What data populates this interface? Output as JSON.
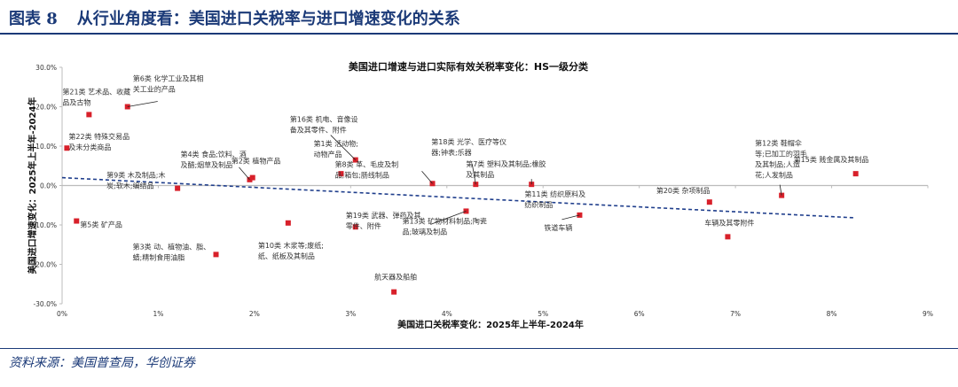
{
  "figure": {
    "label": "图表 8",
    "title": "从行业角度看：美国进口关税率与进口增速变化的关系",
    "source": "资料来源：美国普查局，华创证券"
  },
  "colors": {
    "brand": "#1b3a78",
    "point": "#d8202a",
    "trend": "#1f3e8c",
    "grid": "#dddddd"
  },
  "chart_data": {
    "type": "scatter",
    "title": "美国进口增速与进口实际有效关税率变化：HS一级分类",
    "xlabel": "美国进口关税率变化：2025年上半年-2024年",
    "ylabel": "美国进口增速变化：2025年上半年-2024年",
    "xlim": [
      0,
      9
    ],
    "ylim": [
      -30,
      30
    ],
    "x_unit": "%",
    "y_unit": "%",
    "xticks": [
      "0%",
      "1%",
      "2%",
      "3%",
      "4%",
      "5%",
      "6%",
      "7%",
      "8%",
      "9%"
    ],
    "yticks": [
      "30.0%",
      "20.0%",
      "10.0%",
      "0.0%",
      "-10.0%",
      "-20.0%",
      "-30.0%"
    ],
    "grid": false,
    "trendline": {
      "style": "dashed",
      "x": [
        0,
        8.25
      ],
      "y": [
        2.0,
        -8.2
      ]
    },
    "points": [
      {
        "x": 0.05,
        "y": 9.5,
        "label": "第22类 特殊交易品及未分类商品"
      },
      {
        "x": 0.28,
        "y": 18.0,
        "label": "第21类 艺术品、收藏品及古物"
      },
      {
        "x": 0.15,
        "y": -9.0,
        "label": "第5类 矿产品"
      },
      {
        "x": 0.68,
        "y": 20.0,
        "label": "第6类 化学工业及其相关工业的产品"
      },
      {
        "x": 1.2,
        "y": -0.7,
        "label": "第9类 木及制品;木炭;软木;编结品"
      },
      {
        "x": 1.6,
        "y": -17.5,
        "label": "第3类 动、植物油、脂、蜡;精制食用油脂"
      },
      {
        "x": 1.95,
        "y": 1.5,
        "label": "第4类 食品;饮料、酒及醋;烟草及制品"
      },
      {
        "x": 1.98,
        "y": 2.0,
        "label": "第2类 植物产品"
      },
      {
        "x": 2.35,
        "y": -9.5,
        "label": "第10类 木浆等;废纸;纸、纸板及其制品"
      },
      {
        "x": 2.9,
        "y": 3.0,
        "label": "第1类 活动物;动物产品"
      },
      {
        "x": 3.05,
        "y": 6.5,
        "label": "第16类 机电、音像设备及其零件、附件"
      },
      {
        "x": 3.05,
        "y": -10.5,
        "label": "第19类 武器、弹药及其零件、附件"
      },
      {
        "x": 3.45,
        "y": -27.0,
        "label": "航天器及船舶"
      },
      {
        "x": 3.85,
        "y": 0.5,
        "label": "第8类 革、毛皮及制品;箱包;肠线制品"
      },
      {
        "x": 4.2,
        "y": -6.5,
        "label": "第13类 矿物材料制品;陶瓷品;玻璃及制品"
      },
      {
        "x": 4.3,
        "y": 0.3,
        "label": "第18类 光学、医疗等仪器;钟表;乐器"
      },
      {
        "x": 4.88,
        "y": 0.3,
        "label": "第7类 塑料及其制品;橡胶及其制品"
      },
      {
        "x": 5.38,
        "y": -7.5,
        "label": "第11类 纺织原料及纺织制品"
      },
      {
        "x": 5.38,
        "y": -7.5,
        "label": "铁道车辆"
      },
      {
        "x": 6.73,
        "y": -4.2,
        "label": "第20类 杂项制品"
      },
      {
        "x": 6.92,
        "y": -13.0,
        "label": "车辆及其零附件"
      },
      {
        "x": 7.48,
        "y": -2.5,
        "label": "第12类 鞋帽伞等;已加工的羽毛及其制品;人造花;人发制品"
      },
      {
        "x": 8.25,
        "y": 3.0,
        "label": "第15类 贱金属及其制品"
      }
    ]
  }
}
